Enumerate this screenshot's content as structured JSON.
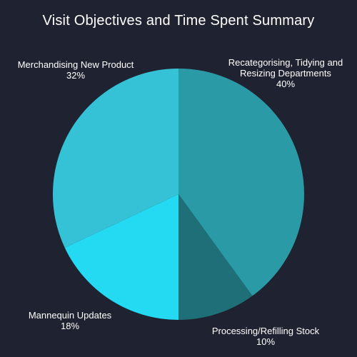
{
  "colors": {
    "background": "#1f2230",
    "title_text": "#ffffff",
    "label_text": "#ffffff"
  },
  "chart_data": {
    "type": "pie",
    "title": "Visit Objectives and Time Spent Summary",
    "slices": [
      {
        "label_lines": [
          "Recategorising, Tidying and",
          "Resizing Departments"
        ],
        "percent_text": "40%",
        "value": 40,
        "color": "#2a9aa6"
      },
      {
        "label_lines": [
          "Processing/Refilling Stock"
        ],
        "percent_text": "10%",
        "value": 10,
        "color": "#1e6f78"
      },
      {
        "label_lines": [
          "Mannequin Updates"
        ],
        "percent_text": "18%",
        "value": 18,
        "color": "#24daf2"
      },
      {
        "label_lines": [
          "Merchandising New Product"
        ],
        "percent_text": "32%",
        "value": 32,
        "color": "#35c2d6"
      }
    ],
    "start_angle_deg": 0,
    "direction": "clockwise",
    "legend": "none"
  }
}
